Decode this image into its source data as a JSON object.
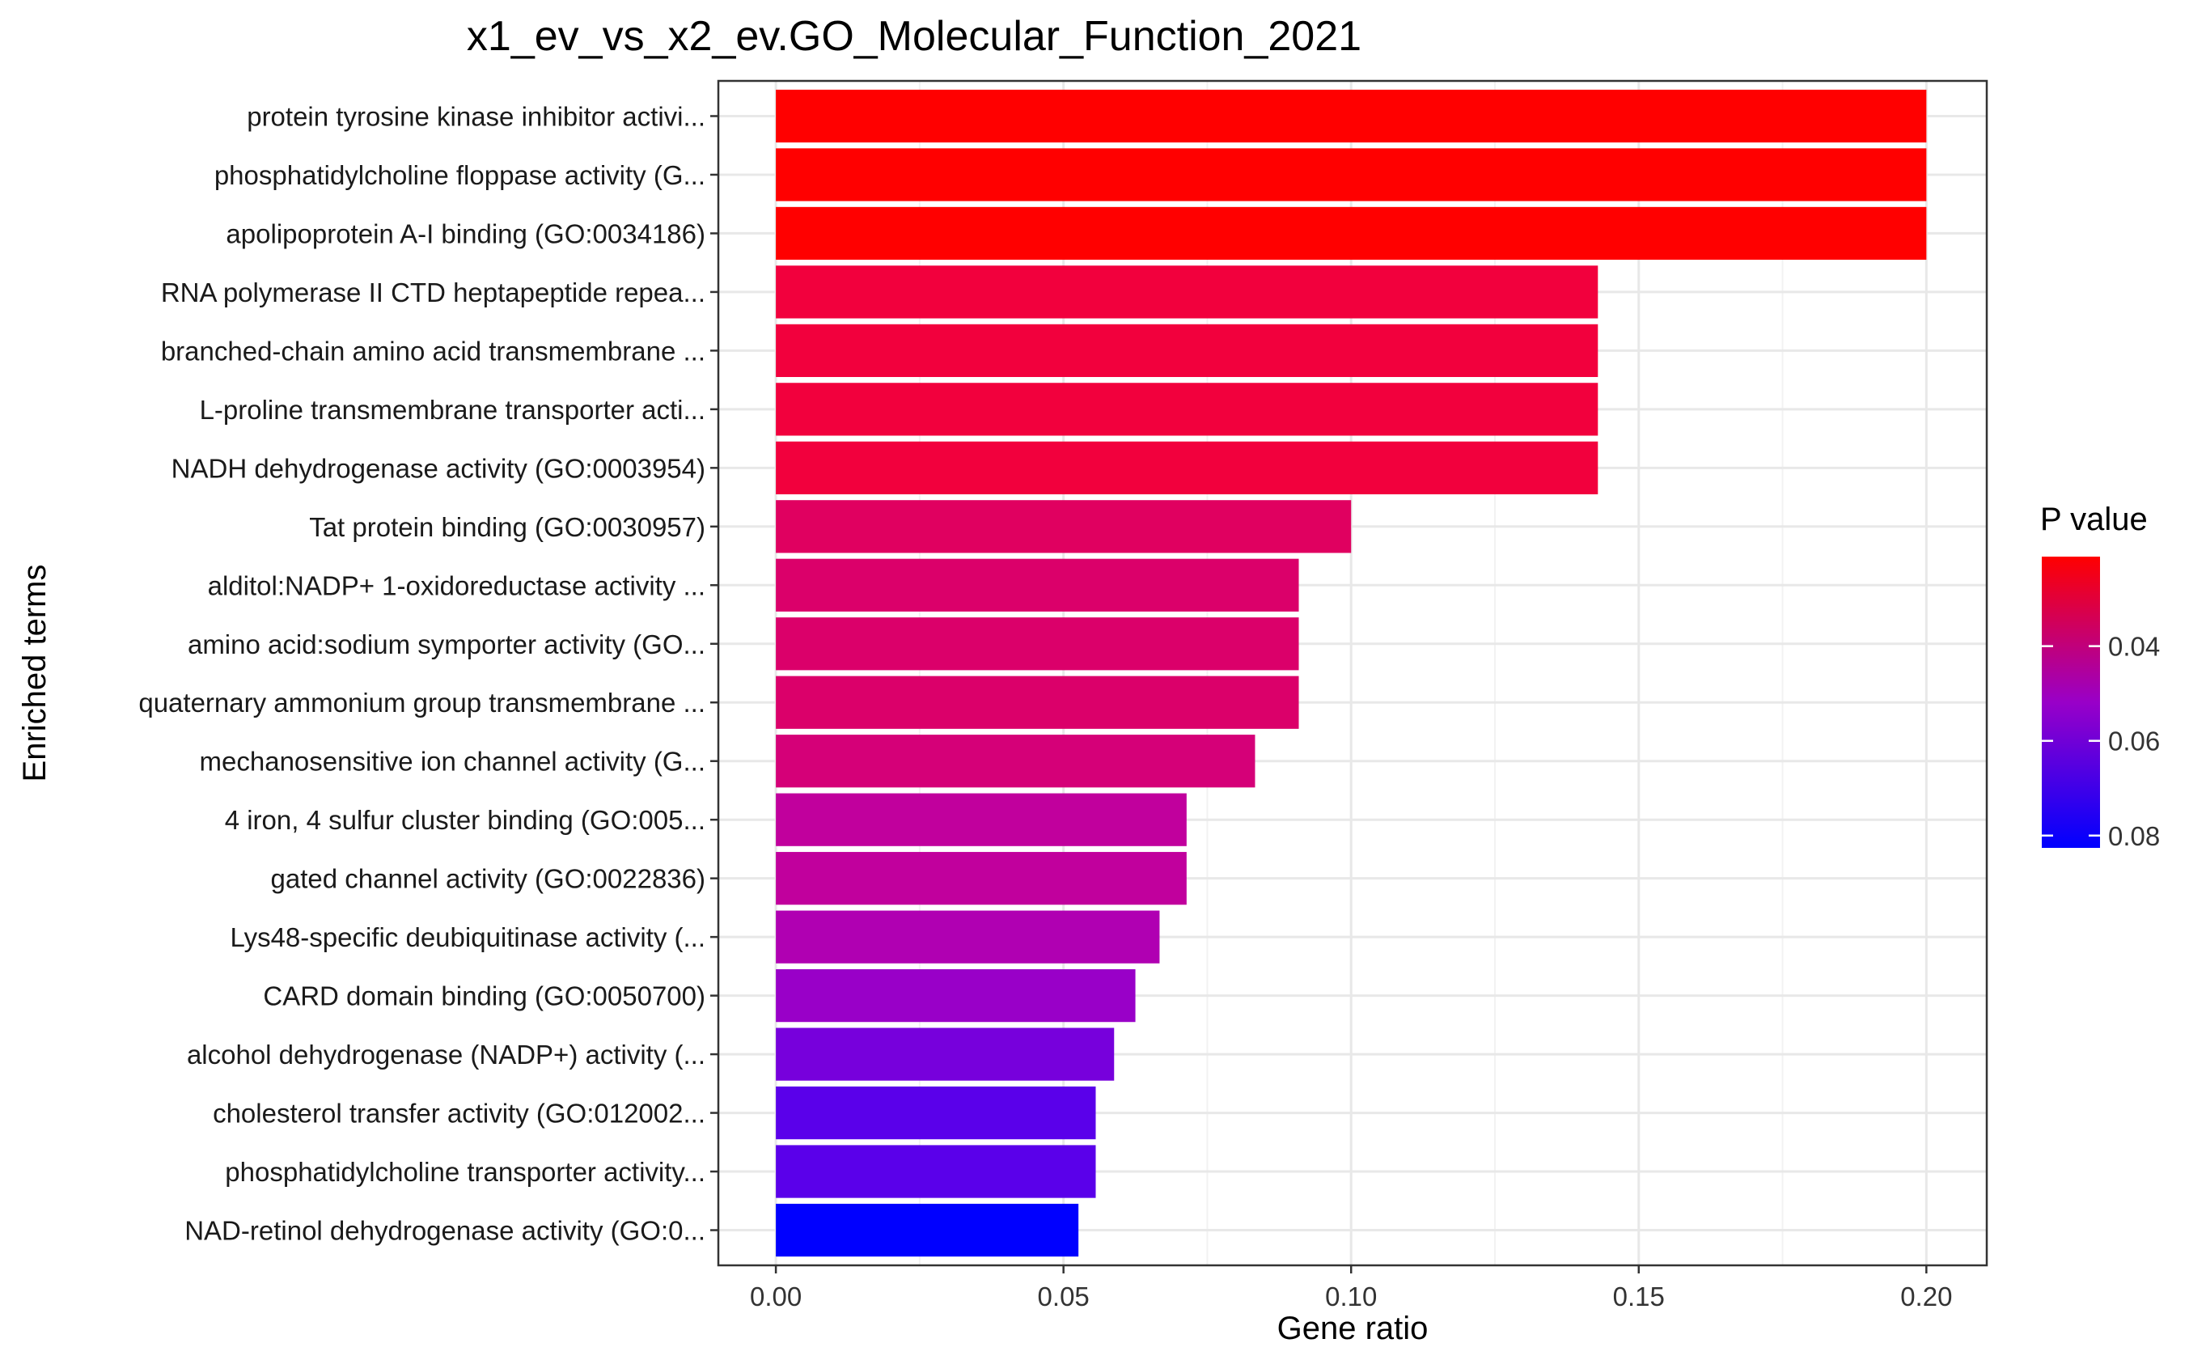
{
  "chart_data": {
    "type": "bar",
    "orientation": "horizontal",
    "title": "x1_ev_vs_x2_ev.GO_Molecular_Function_2021",
    "xlabel": "Gene ratio",
    "ylabel": "Enriched terms",
    "xlim": [
      -0.01,
      0.2105
    ],
    "xticks": [
      0.0,
      0.05,
      0.1,
      0.15,
      0.2
    ],
    "xtick_labels": [
      "0.00",
      "0.05",
      "0.10",
      "0.15",
      "0.20"
    ],
    "grid": true,
    "categories": [
      "protein tyrosine kinase inhibitor activi...",
      "phosphatidylcholine floppase activity (G...",
      "apolipoprotein A-I binding (GO:0034186)",
      "RNA polymerase II CTD heptapeptide repea...",
      "branched-chain amino acid transmembrane ...",
      "L-proline transmembrane transporter acti...",
      "NADH dehydrogenase activity (GO:0003954)",
      "Tat protein binding (GO:0030957)",
      "alditol:NADP+ 1-oxidoreductase activity ...",
      "amino acid:sodium symporter activity (GO...",
      "quaternary ammonium group transmembrane ...",
      "mechanosensitive ion channel activity (G...",
      "4 iron, 4 sulfur cluster binding (GO:005...",
      "gated channel activity (GO:0022836)",
      "Lys48-specific deubiquitinase activity (...",
      "CARD domain binding (GO:0050700)",
      "alcohol dehydrogenase (NADP+) activity (...",
      "cholesterol transfer activity (GO:012002...",
      "phosphatidylcholine transporter activity...",
      "NAD-retinol dehydrogenase activity (GO:0..."
    ],
    "values": [
      0.2,
      0.2,
      0.2,
      0.1429,
      0.1429,
      0.1429,
      0.1429,
      0.1,
      0.0909,
      0.0909,
      0.0909,
      0.0833,
      0.0714,
      0.0714,
      0.0667,
      0.0625,
      0.0588,
      0.0556,
      0.0556,
      0.0526
    ],
    "colors": [
      "#ff0000",
      "#ff0000",
      "#ff0000",
      "#f2003d",
      "#f2003d",
      "#f2003d",
      "#f2003d",
      "#e00060",
      "#db006a",
      "#db006a",
      "#db006a",
      "#d50078",
      "#c1009d",
      "#c1009d",
      "#b000b2",
      "#9900c8",
      "#7700dc",
      "#5a00ea",
      "#5a00ea",
      "#0000ff"
    ],
    "legend": {
      "title": "P value",
      "position": "right",
      "ticks": [
        "0.04",
        "0.06",
        "0.08"
      ],
      "color_low_p": "#ff0000",
      "color_high_p": "#0000ff",
      "color_mid": "#9900c8"
    },
    "axis_tick_values": {
      "ticks": [
        0.04,
        0.06,
        0.08
      ],
      "range": [
        0.0211,
        0.0826
      ]
    }
  }
}
